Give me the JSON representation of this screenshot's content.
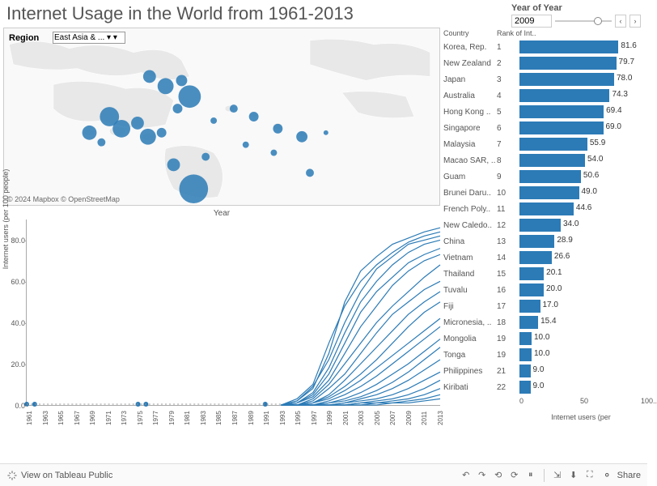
{
  "title": "Internet Usage in the World from 1961-2013",
  "year_control": {
    "label": "Year of Year",
    "value": "2009"
  },
  "region": {
    "label": "Region",
    "selected": "East Asia & ..."
  },
  "attribution": "© 2024 Mapbox  © OpenStreetMap",
  "colors": {
    "bar": "#2c7bb6",
    "line": "#2c7bb6",
    "land": "#e8e8e8",
    "grid": "#aaaaaa"
  },
  "map_bubbles": [
    {
      "x": 180,
      "y": 60,
      "r": 8
    },
    {
      "x": 200,
      "y": 72,
      "r": 10
    },
    {
      "x": 220,
      "y": 65,
      "r": 7
    },
    {
      "x": 230,
      "y": 85,
      "r": 14
    },
    {
      "x": 215,
      "y": 100,
      "r": 6
    },
    {
      "x": 130,
      "y": 110,
      "r": 12
    },
    {
      "x": 145,
      "y": 125,
      "r": 11
    },
    {
      "x": 165,
      "y": 118,
      "r": 8
    },
    {
      "x": 178,
      "y": 135,
      "r": 10
    },
    {
      "x": 195,
      "y": 130,
      "r": 6
    },
    {
      "x": 105,
      "y": 130,
      "r": 9
    },
    {
      "x": 120,
      "y": 142,
      "r": 5
    },
    {
      "x": 260,
      "y": 115,
      "r": 4
    },
    {
      "x": 285,
      "y": 100,
      "r": 5
    },
    {
      "x": 310,
      "y": 110,
      "r": 6
    },
    {
      "x": 340,
      "y": 125,
      "r": 6
    },
    {
      "x": 370,
      "y": 135,
      "r": 7
    },
    {
      "x": 335,
      "y": 155,
      "r": 4
    },
    {
      "x": 300,
      "y": 145,
      "r": 4
    },
    {
      "x": 400,
      "y": 130,
      "r": 3
    },
    {
      "x": 235,
      "y": 200,
      "r": 18
    },
    {
      "x": 210,
      "y": 170,
      "r": 8
    },
    {
      "x": 250,
      "y": 160,
      "r": 5
    },
    {
      "x": 380,
      "y": 180,
      "r": 5
    }
  ],
  "line_chart": {
    "title": "Year",
    "y_label": "Internet users (per 100 people)",
    "y_ticks": [
      0.0,
      20.0,
      40.0,
      60.0,
      80.0
    ],
    "y_max": 90,
    "x_years": [
      1961,
      1963,
      1965,
      1967,
      1969,
      1971,
      1973,
      1975,
      1977,
      1979,
      1981,
      1983,
      1985,
      1987,
      1989,
      1991,
      1993,
      1995,
      1997,
      1999,
      2001,
      2003,
      2005,
      2007,
      2009,
      2011,
      2013
    ],
    "dots": [
      1961,
      1962,
      1975,
      1976,
      1991
    ],
    "series": [
      [
        [
          1993,
          0
        ],
        [
          1995,
          2
        ],
        [
          1997,
          8
        ],
        [
          1999,
          25
        ],
        [
          2001,
          50
        ],
        [
          2003,
          65
        ],
        [
          2005,
          72
        ],
        [
          2007,
          78
        ],
        [
          2009,
          81
        ],
        [
          2011,
          84
        ],
        [
          2013,
          86
        ]
      ],
      [
        [
          1993,
          0
        ],
        [
          1995,
          3
        ],
        [
          1997,
          10
        ],
        [
          1999,
          30
        ],
        [
          2001,
          48
        ],
        [
          2003,
          60
        ],
        [
          2005,
          68
        ],
        [
          2007,
          74
        ],
        [
          2009,
          79
        ],
        [
          2011,
          82
        ],
        [
          2013,
          84
        ]
      ],
      [
        [
          1993,
          0
        ],
        [
          1995,
          2
        ],
        [
          1997,
          9
        ],
        [
          1999,
          22
        ],
        [
          2001,
          40
        ],
        [
          2003,
          55
        ],
        [
          2005,
          66
        ],
        [
          2007,
          72
        ],
        [
          2009,
          78
        ],
        [
          2011,
          80
        ],
        [
          2013,
          82
        ]
      ],
      [
        [
          1993,
          0
        ],
        [
          1995,
          1
        ],
        [
          1997,
          6
        ],
        [
          1999,
          18
        ],
        [
          2001,
          35
        ],
        [
          2003,
          50
        ],
        [
          2005,
          60
        ],
        [
          2007,
          68
        ],
        [
          2009,
          74
        ],
        [
          2011,
          78
        ],
        [
          2013,
          80
        ]
      ],
      [
        [
          1993,
          0
        ],
        [
          1995,
          1
        ],
        [
          1997,
          5
        ],
        [
          1999,
          15
        ],
        [
          2001,
          30
        ],
        [
          2003,
          45
        ],
        [
          2005,
          55
        ],
        [
          2007,
          62
        ],
        [
          2009,
          69
        ],
        [
          2011,
          73
        ],
        [
          2013,
          76
        ]
      ],
      [
        [
          1993,
          0
        ],
        [
          1995,
          1
        ],
        [
          1997,
          4
        ],
        [
          1999,
          12
        ],
        [
          2001,
          25
        ],
        [
          2003,
          38
        ],
        [
          2005,
          48
        ],
        [
          2007,
          58
        ],
        [
          2009,
          65
        ],
        [
          2011,
          70
        ],
        [
          2013,
          73
        ]
      ],
      [
        [
          1993,
          0
        ],
        [
          1995,
          0
        ],
        [
          1997,
          3
        ],
        [
          1999,
          10
        ],
        [
          2001,
          20
        ],
        [
          2003,
          30
        ],
        [
          2005,
          40
        ],
        [
          2007,
          48
        ],
        [
          2009,
          55
        ],
        [
          2011,
          62
        ],
        [
          2013,
          68
        ]
      ],
      [
        [
          1993,
          0
        ],
        [
          1995,
          0
        ],
        [
          1997,
          2
        ],
        [
          1999,
          8
        ],
        [
          2001,
          15
        ],
        [
          2003,
          25
        ],
        [
          2005,
          35
        ],
        [
          2007,
          44
        ],
        [
          2009,
          50
        ],
        [
          2011,
          56
        ],
        [
          2013,
          60
        ]
      ],
      [
        [
          1993,
          0
        ],
        [
          1995,
          0
        ],
        [
          1997,
          1
        ],
        [
          1999,
          5
        ],
        [
          2001,
          12
        ],
        [
          2003,
          20
        ],
        [
          2005,
          28
        ],
        [
          2007,
          36
        ],
        [
          2009,
          44
        ],
        [
          2011,
          50
        ],
        [
          2013,
          55
        ]
      ],
      [
        [
          1993,
          0
        ],
        [
          1995,
          0
        ],
        [
          1997,
          1
        ],
        [
          1999,
          4
        ],
        [
          2001,
          9
        ],
        [
          2003,
          15
        ],
        [
          2005,
          22
        ],
        [
          2007,
          30
        ],
        [
          2009,
          38
        ],
        [
          2011,
          45
        ],
        [
          2013,
          50
        ]
      ],
      [
        [
          1993,
          0
        ],
        [
          1995,
          0
        ],
        [
          1997,
          1
        ],
        [
          1999,
          3
        ],
        [
          2001,
          7
        ],
        [
          2003,
          12
        ],
        [
          2005,
          18
        ],
        [
          2007,
          24
        ],
        [
          2009,
          30
        ],
        [
          2011,
          36
        ],
        [
          2013,
          42
        ]
      ],
      [
        [
          1993,
          0
        ],
        [
          1995,
          0
        ],
        [
          1997,
          0
        ],
        [
          1999,
          2
        ],
        [
          2001,
          5
        ],
        [
          2003,
          9
        ],
        [
          2005,
          14
        ],
        [
          2007,
          20
        ],
        [
          2009,
          26
        ],
        [
          2011,
          32
        ],
        [
          2013,
          38
        ]
      ],
      [
        [
          1993,
          0
        ],
        [
          1995,
          0
        ],
        [
          1997,
          0
        ],
        [
          1999,
          1
        ],
        [
          2001,
          3
        ],
        [
          2003,
          6
        ],
        [
          2005,
          10
        ],
        [
          2007,
          15
        ],
        [
          2009,
          20
        ],
        [
          2011,
          26
        ],
        [
          2013,
          32
        ]
      ],
      [
        [
          1993,
          0
        ],
        [
          1995,
          0
        ],
        [
          1997,
          0
        ],
        [
          1999,
          1
        ],
        [
          2001,
          2
        ],
        [
          2003,
          4
        ],
        [
          2005,
          7
        ],
        [
          2007,
          11
        ],
        [
          2009,
          16
        ],
        [
          2011,
          22
        ],
        [
          2013,
          28
        ]
      ],
      [
        [
          1993,
          0
        ],
        [
          1995,
          0
        ],
        [
          1997,
          0
        ],
        [
          1999,
          0
        ],
        [
          2001,
          1
        ],
        [
          2003,
          3
        ],
        [
          2005,
          5
        ],
        [
          2007,
          8
        ],
        [
          2009,
          12
        ],
        [
          2011,
          17
        ],
        [
          2013,
          22
        ]
      ],
      [
        [
          1993,
          0
        ],
        [
          1995,
          0
        ],
        [
          1997,
          0
        ],
        [
          1999,
          0
        ],
        [
          2001,
          1
        ],
        [
          2003,
          2
        ],
        [
          2005,
          3
        ],
        [
          2007,
          5
        ],
        [
          2009,
          8
        ],
        [
          2011,
          12
        ],
        [
          2013,
          16
        ]
      ],
      [
        [
          1993,
          0
        ],
        [
          1995,
          0
        ],
        [
          1997,
          0
        ],
        [
          1999,
          0
        ],
        [
          2001,
          0
        ],
        [
          2003,
          1
        ],
        [
          2005,
          2
        ],
        [
          2007,
          3
        ],
        [
          2009,
          5
        ],
        [
          2011,
          8
        ],
        [
          2013,
          12
        ]
      ],
      [
        [
          1993,
          0
        ],
        [
          1995,
          0
        ],
        [
          1997,
          0
        ],
        [
          1999,
          0
        ],
        [
          2001,
          0
        ],
        [
          2003,
          1
        ],
        [
          2005,
          1
        ],
        [
          2007,
          2
        ],
        [
          2009,
          3
        ],
        [
          2011,
          5
        ],
        [
          2013,
          8
        ]
      ],
      [
        [
          1993,
          0
        ],
        [
          1995,
          0
        ],
        [
          1997,
          0
        ],
        [
          1999,
          0
        ],
        [
          2001,
          0
        ],
        [
          2003,
          0
        ],
        [
          2005,
          1
        ],
        [
          2007,
          1
        ],
        [
          2009,
          2
        ],
        [
          2011,
          3
        ],
        [
          2013,
          5
        ]
      ],
      [
        [
          1993,
          0
        ],
        [
          1995,
          0
        ],
        [
          1997,
          0
        ],
        [
          1999,
          0
        ],
        [
          2001,
          0
        ],
        [
          2003,
          0
        ],
        [
          2005,
          0
        ],
        [
          2007,
          1
        ],
        [
          2009,
          1
        ],
        [
          2011,
          2
        ],
        [
          2013,
          3
        ]
      ]
    ]
  },
  "table": {
    "col_country": "Country",
    "col_rank": "Rank of Int..",
    "bar_max": 100,
    "axis_ticks": [
      0.0,
      50.0,
      "100.."
    ],
    "axis_label": "Internet users (per",
    "rows": [
      {
        "country": "Korea, Rep.",
        "rank": "1",
        "value": 81.6,
        "label": "81.6"
      },
      {
        "country": "New Zealand",
        "rank": "2",
        "value": 79.7,
        "label": "79.7"
      },
      {
        "country": "Japan",
        "rank": "3",
        "value": 78.0,
        "label": "78.0"
      },
      {
        "country": "Australia",
        "rank": "4",
        "value": 74.3,
        "label": "74.3"
      },
      {
        "country": "Hong Kong ..",
        "rank": "5",
        "value": 69.4,
        "label": "69.4"
      },
      {
        "country": "Singapore",
        "rank": "6",
        "value": 69.0,
        "label": "69.0"
      },
      {
        "country": "Malaysia",
        "rank": "7",
        "value": 55.9,
        "label": "55.9"
      },
      {
        "country": "Macao SAR, ..",
        "rank": "8",
        "value": 54.0,
        "label": "54.0"
      },
      {
        "country": "Guam",
        "rank": "9",
        "value": 50.6,
        "label": "50.6"
      },
      {
        "country": "Brunei Daru..",
        "rank": "10",
        "value": 49.0,
        "label": "49.0"
      },
      {
        "country": "French Poly..",
        "rank": "11",
        "value": 44.6,
        "label": "44.6"
      },
      {
        "country": "New Caledo..",
        "rank": "12",
        "value": 34.0,
        "label": "34.0"
      },
      {
        "country": "China",
        "rank": "13",
        "value": 28.9,
        "label": "28.9"
      },
      {
        "country": "Vietnam",
        "rank": "14",
        "value": 26.6,
        "label": "26.6"
      },
      {
        "country": "Thailand",
        "rank": "15",
        "value": 20.1,
        "label": "20.1"
      },
      {
        "country": "Tuvalu",
        "rank": "16",
        "value": 20.0,
        "label": "20.0"
      },
      {
        "country": "Fiji",
        "rank": "17",
        "value": 17.0,
        "label": "17.0"
      },
      {
        "country": "Micronesia, ..",
        "rank": "18",
        "value": 15.4,
        "label": "15.4"
      },
      {
        "country": "Mongolia",
        "rank": "19",
        "value": 10.0,
        "label": "10.0"
      },
      {
        "country": "Tonga",
        "rank": "19",
        "value": 10.0,
        "label": "10.0"
      },
      {
        "country": "Philippines",
        "rank": "21",
        "value": 9.0,
        "label": "9.0"
      },
      {
        "country": "Kiribati",
        "rank": "22",
        "value": 9.0,
        "label": "9.0"
      }
    ]
  },
  "footer": {
    "view": "View on Tableau Public",
    "share": "Share"
  }
}
